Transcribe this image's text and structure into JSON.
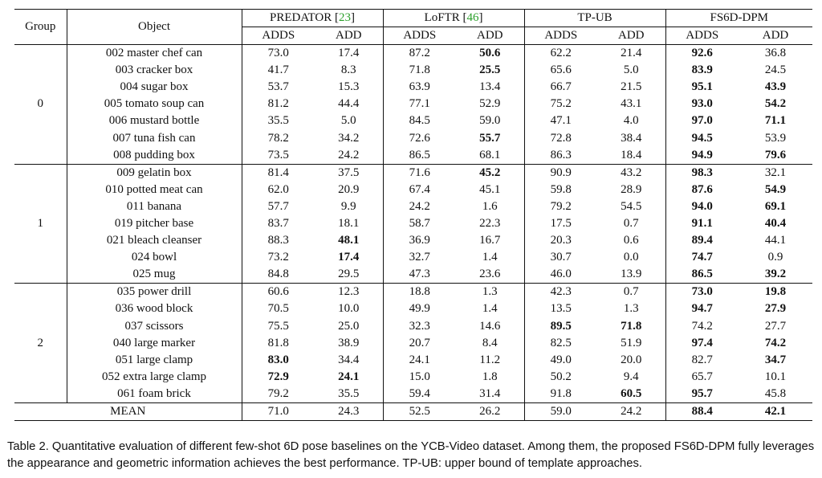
{
  "header": {
    "group": "Group",
    "object": "Object",
    "methods": [
      {
        "name": "PREDATOR",
        "ref": "23"
      },
      {
        "name": "LoFTR",
        "ref": "46"
      },
      {
        "name": "TP-UB",
        "ref": ""
      },
      {
        "name": "FS6D-DPM",
        "ref": ""
      }
    ],
    "metrics": [
      "ADDS",
      "ADD"
    ]
  },
  "groups": [
    {
      "label": "0",
      "rows": [
        {
          "object": "002 master chef can",
          "vals": [
            "73.0",
            "17.4",
            "87.2",
            "50.6",
            "62.2",
            "21.4",
            "92.6",
            "36.8"
          ],
          "bold": [
            false,
            false,
            false,
            true,
            false,
            false,
            true,
            false
          ]
        },
        {
          "object": "003 cracker box",
          "vals": [
            "41.7",
            "8.3",
            "71.8",
            "25.5",
            "65.6",
            "5.0",
            "83.9",
            "24.5"
          ],
          "bold": [
            false,
            false,
            false,
            true,
            false,
            false,
            true,
            false
          ]
        },
        {
          "object": "004 sugar box",
          "vals": [
            "53.7",
            "15.3",
            "63.9",
            "13.4",
            "66.7",
            "21.5",
            "95.1",
            "43.9"
          ],
          "bold": [
            false,
            false,
            false,
            false,
            false,
            false,
            true,
            true
          ]
        },
        {
          "object": "005 tomato soup can",
          "vals": [
            "81.2",
            "44.4",
            "77.1",
            "52.9",
            "75.2",
            "43.1",
            "93.0",
            "54.2"
          ],
          "bold": [
            false,
            false,
            false,
            false,
            false,
            false,
            true,
            true
          ]
        },
        {
          "object": "006 mustard bottle",
          "vals": [
            "35.5",
            "5.0",
            "84.5",
            "59.0",
            "47.1",
            "4.0",
            "97.0",
            "71.1"
          ],
          "bold": [
            false,
            false,
            false,
            false,
            false,
            false,
            true,
            true
          ]
        },
        {
          "object": "007 tuna fish can",
          "vals": [
            "78.2",
            "34.2",
            "72.6",
            "55.7",
            "72.8",
            "38.4",
            "94.5",
            "53.9"
          ],
          "bold": [
            false,
            false,
            false,
            true,
            false,
            false,
            true,
            false
          ]
        },
        {
          "object": "008 pudding box",
          "vals": [
            "73.5",
            "24.2",
            "86.5",
            "68.1",
            "86.3",
            "18.4",
            "94.9",
            "79.6"
          ],
          "bold": [
            false,
            false,
            false,
            false,
            false,
            false,
            true,
            true
          ]
        }
      ]
    },
    {
      "label": "1",
      "rows": [
        {
          "object": "009 gelatin box",
          "vals": [
            "81.4",
            "37.5",
            "71.6",
            "45.2",
            "90.9",
            "43.2",
            "98.3",
            "32.1"
          ],
          "bold": [
            false,
            false,
            false,
            true,
            false,
            false,
            true,
            false
          ]
        },
        {
          "object": "010 potted meat can",
          "vals": [
            "62.0",
            "20.9",
            "67.4",
            "45.1",
            "59.8",
            "28.9",
            "87.6",
            "54.9"
          ],
          "bold": [
            false,
            false,
            false,
            false,
            false,
            false,
            true,
            true
          ]
        },
        {
          "object": "011 banana",
          "vals": [
            "57.7",
            "9.9",
            "24.2",
            "1.6",
            "79.2",
            "54.5",
            "94.0",
            "69.1"
          ],
          "bold": [
            false,
            false,
            false,
            false,
            false,
            false,
            true,
            true
          ]
        },
        {
          "object": "019 pitcher base",
          "vals": [
            "83.7",
            "18.1",
            "58.7",
            "22.3",
            "17.5",
            "0.7",
            "91.1",
            "40.4"
          ],
          "bold": [
            false,
            false,
            false,
            false,
            false,
            false,
            true,
            true
          ]
        },
        {
          "object": "021 bleach cleanser",
          "vals": [
            "88.3",
            "48.1",
            "36.9",
            "16.7",
            "20.3",
            "0.6",
            "89.4",
            "44.1"
          ],
          "bold": [
            false,
            true,
            false,
            false,
            false,
            false,
            true,
            false
          ]
        },
        {
          "object": "024 bowl",
          "vals": [
            "73.2",
            "17.4",
            "32.7",
            "1.4",
            "30.7",
            "0.0",
            "74.7",
            "0.9"
          ],
          "bold": [
            false,
            true,
            false,
            false,
            false,
            false,
            true,
            false
          ]
        },
        {
          "object": "025 mug",
          "vals": [
            "84.8",
            "29.5",
            "47.3",
            "23.6",
            "46.0",
            "13.9",
            "86.5",
            "39.2"
          ],
          "bold": [
            false,
            false,
            false,
            false,
            false,
            false,
            true,
            true
          ]
        }
      ]
    },
    {
      "label": "2",
      "rows": [
        {
          "object": "035 power drill",
          "vals": [
            "60.6",
            "12.3",
            "18.8",
            "1.3",
            "42.3",
            "0.7",
            "73.0",
            "19.8"
          ],
          "bold": [
            false,
            false,
            false,
            false,
            false,
            false,
            true,
            true
          ]
        },
        {
          "object": "036 wood block",
          "vals": [
            "70.5",
            "10.0",
            "49.9",
            "1.4",
            "13.5",
            "1.3",
            "94.7",
            "27.9"
          ],
          "bold": [
            false,
            false,
            false,
            false,
            false,
            false,
            true,
            true
          ]
        },
        {
          "object": "037 scissors",
          "vals": [
            "75.5",
            "25.0",
            "32.3",
            "14.6",
            "89.5",
            "71.8",
            "74.2",
            "27.7"
          ],
          "bold": [
            false,
            false,
            false,
            false,
            true,
            true,
            false,
            false
          ]
        },
        {
          "object": "040 large marker",
          "vals": [
            "81.8",
            "38.9",
            "20.7",
            "8.4",
            "82.5",
            "51.9",
            "97.4",
            "74.2"
          ],
          "bold": [
            false,
            false,
            false,
            false,
            false,
            false,
            true,
            true
          ]
        },
        {
          "object": "051 large clamp",
          "vals": [
            "83.0",
            "34.4",
            "24.1",
            "11.2",
            "49.0",
            "20.0",
            "82.7",
            "34.7"
          ],
          "bold": [
            true,
            false,
            false,
            false,
            false,
            false,
            false,
            true
          ]
        },
        {
          "object": "052 extra large clamp",
          "vals": [
            "72.9",
            "24.1",
            "15.0",
            "1.8",
            "50.2",
            "9.4",
            "65.7",
            "10.1"
          ],
          "bold": [
            true,
            true,
            false,
            false,
            false,
            false,
            false,
            false
          ]
        },
        {
          "object": "061 foam brick",
          "vals": [
            "79.2",
            "35.5",
            "59.4",
            "31.4",
            "91.8",
            "60.5",
            "95.7",
            "45.8"
          ],
          "bold": [
            false,
            false,
            false,
            false,
            false,
            true,
            true,
            false
          ]
        }
      ]
    }
  ],
  "mean": {
    "label": "MEAN",
    "vals": [
      "71.0",
      "24.3",
      "52.5",
      "26.2",
      "59.0",
      "24.2",
      "88.4",
      "42.1"
    ],
    "bold": [
      false,
      false,
      false,
      false,
      false,
      false,
      true,
      true
    ]
  },
  "caption": "Table 2. Quantitative evaluation of different few-shot 6D pose baselines on the YCB-Video dataset. Among them, the proposed FS6D-DPM fully leverages the appearance and geometric information achieves the best performance. TP-UB: upper bound of template approaches."
}
